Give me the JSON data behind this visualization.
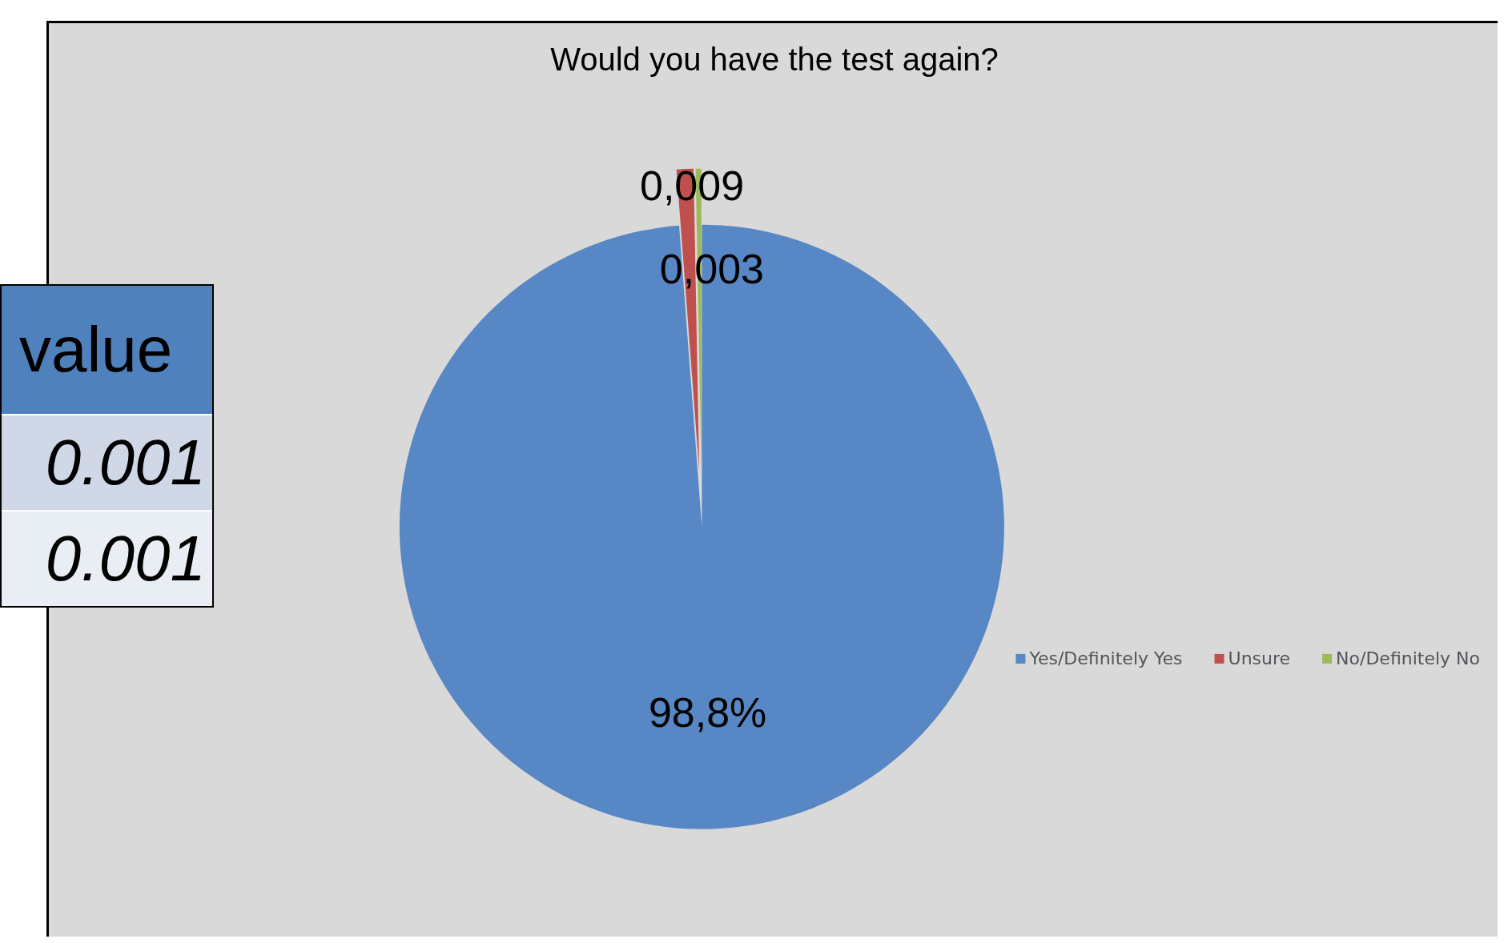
{
  "chart_data": {
    "type": "pie",
    "title": "Would you have the test again?",
    "categories": [
      "Yes/Definitely Yes",
      "Unsure",
      "No/Definitely No"
    ],
    "values": [
      0.988,
      0.009,
      0.003
    ],
    "value_labels": [
      "98,8%",
      "0,009",
      "0,003"
    ],
    "colors": [
      "#5787c4",
      "#c0504d",
      "#9bbb59"
    ],
    "legend": "right",
    "annotations": [
      "value",
      "0.001",
      "0.001"
    ]
  }
}
